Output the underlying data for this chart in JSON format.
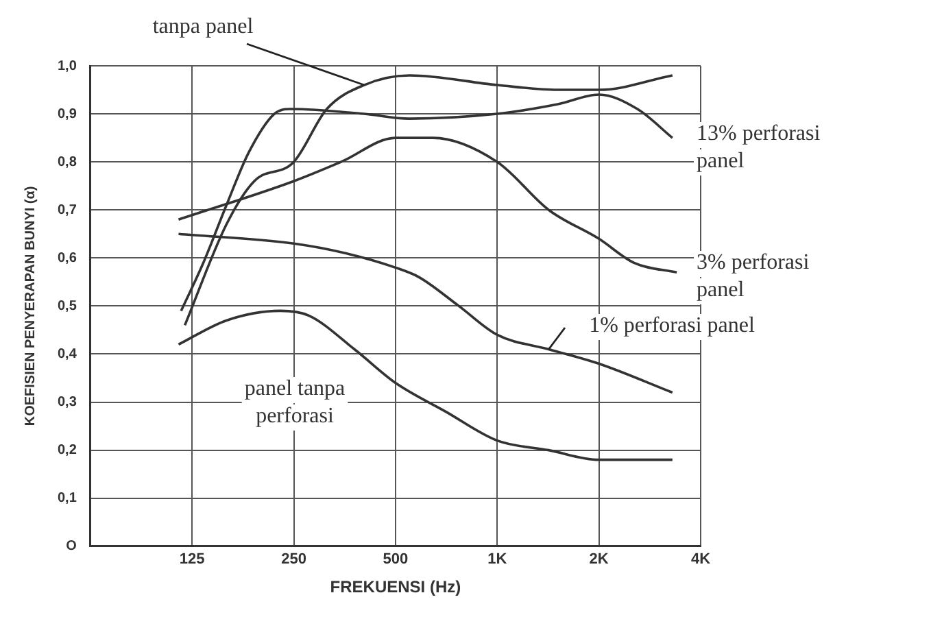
{
  "chart_data": {
    "type": "line",
    "xlabel": "FREKUENSI (Hz)",
    "ylabel": "KOEFISIEN PENYERAPAN BUNYI (α)",
    "log": "x",
    "xlim": [
      62.5,
      4000
    ],
    "xticks": [
      125,
      250,
      500,
      {
        "value": 1000,
        "label": "1K"
      },
      {
        "value": 2000,
        "label": "2K"
      },
      {
        "value": 4000,
        "label": "4K"
      }
    ],
    "ylim": [
      0,
      1
    ],
    "yticks": [
      {
        "value": 0,
        "label": "O"
      },
      {
        "value": 0.1,
        "label": "0,1"
      },
      {
        "value": 0.2,
        "label": "0,2"
      },
      {
        "value": 0.3,
        "label": "0,3"
      },
      {
        "value": 0.4,
        "label": "0,4"
      },
      {
        "value": 0.5,
        "label": "0,5"
      },
      {
        "value": 0.6,
        "label": "0,6"
      },
      {
        "value": 0.7,
        "label": "0,7"
      },
      {
        "value": 0.8,
        "label": "0,8"
      },
      {
        "value": 0.9,
        "label": "0,9"
      },
      {
        "value": 1,
        "label": "1,0"
      }
    ],
    "grid": true,
    "legend": false,
    "marker": "none",
    "line_style": "solid",
    "series": [
      {
        "name": "tanpa panel",
        "color": "#333333",
        "x": [
          119,
          158,
          191,
          250,
          313,
          404,
          550,
          1000,
          1510,
          2000,
          3300
        ],
        "values": [
          0.46,
          0.67,
          0.76,
          0.8,
          0.91,
          0.96,
          0.98,
          0.96,
          0.95,
          0.95,
          0.98
        ]
      },
      {
        "name": "13% perforasi panel",
        "color": "#333333",
        "x": [
          116,
          135,
          158,
          184,
          219,
          245,
          403,
          550,
          1000,
          1510,
          2000,
          2600,
          3300
        ],
        "values": [
          0.49,
          0.59,
          0.71,
          0.82,
          0.9,
          0.91,
          0.9,
          0.89,
          0.9,
          0.92,
          0.94,
          0.91,
          0.85
        ]
      },
      {
        "name": "3% perforasi panel",
        "color": "#333333",
        "x": [
          114,
          250,
          345,
          500,
          646,
          1000,
          1420,
          2000,
          2540,
          3400
        ],
        "values": [
          0.68,
          0.76,
          0.8,
          0.85,
          0.85,
          0.8,
          0.7,
          0.64,
          0.59,
          0.57
        ]
      },
      {
        "name": "1% perforasi panel",
        "color": "#333333",
        "x": [
          114,
          250,
          355,
          500,
          587,
          770,
          1000,
          1420,
          2000,
          3300
        ],
        "values": [
          0.65,
          0.63,
          0.61,
          0.58,
          0.56,
          0.5,
          0.44,
          0.41,
          0.38,
          0.32
        ]
      },
      {
        "name": "panel tanpa perforasi",
        "color": "#333333",
        "x": [
          114,
          158,
          228,
          277,
          378,
          500,
          705,
          1000,
          1420,
          2000,
          3300
        ],
        "values": [
          0.42,
          0.47,
          0.49,
          0.48,
          0.41,
          0.34,
          0.28,
          0.22,
          0.2,
          0.18,
          0.18
        ]
      }
    ]
  }
}
